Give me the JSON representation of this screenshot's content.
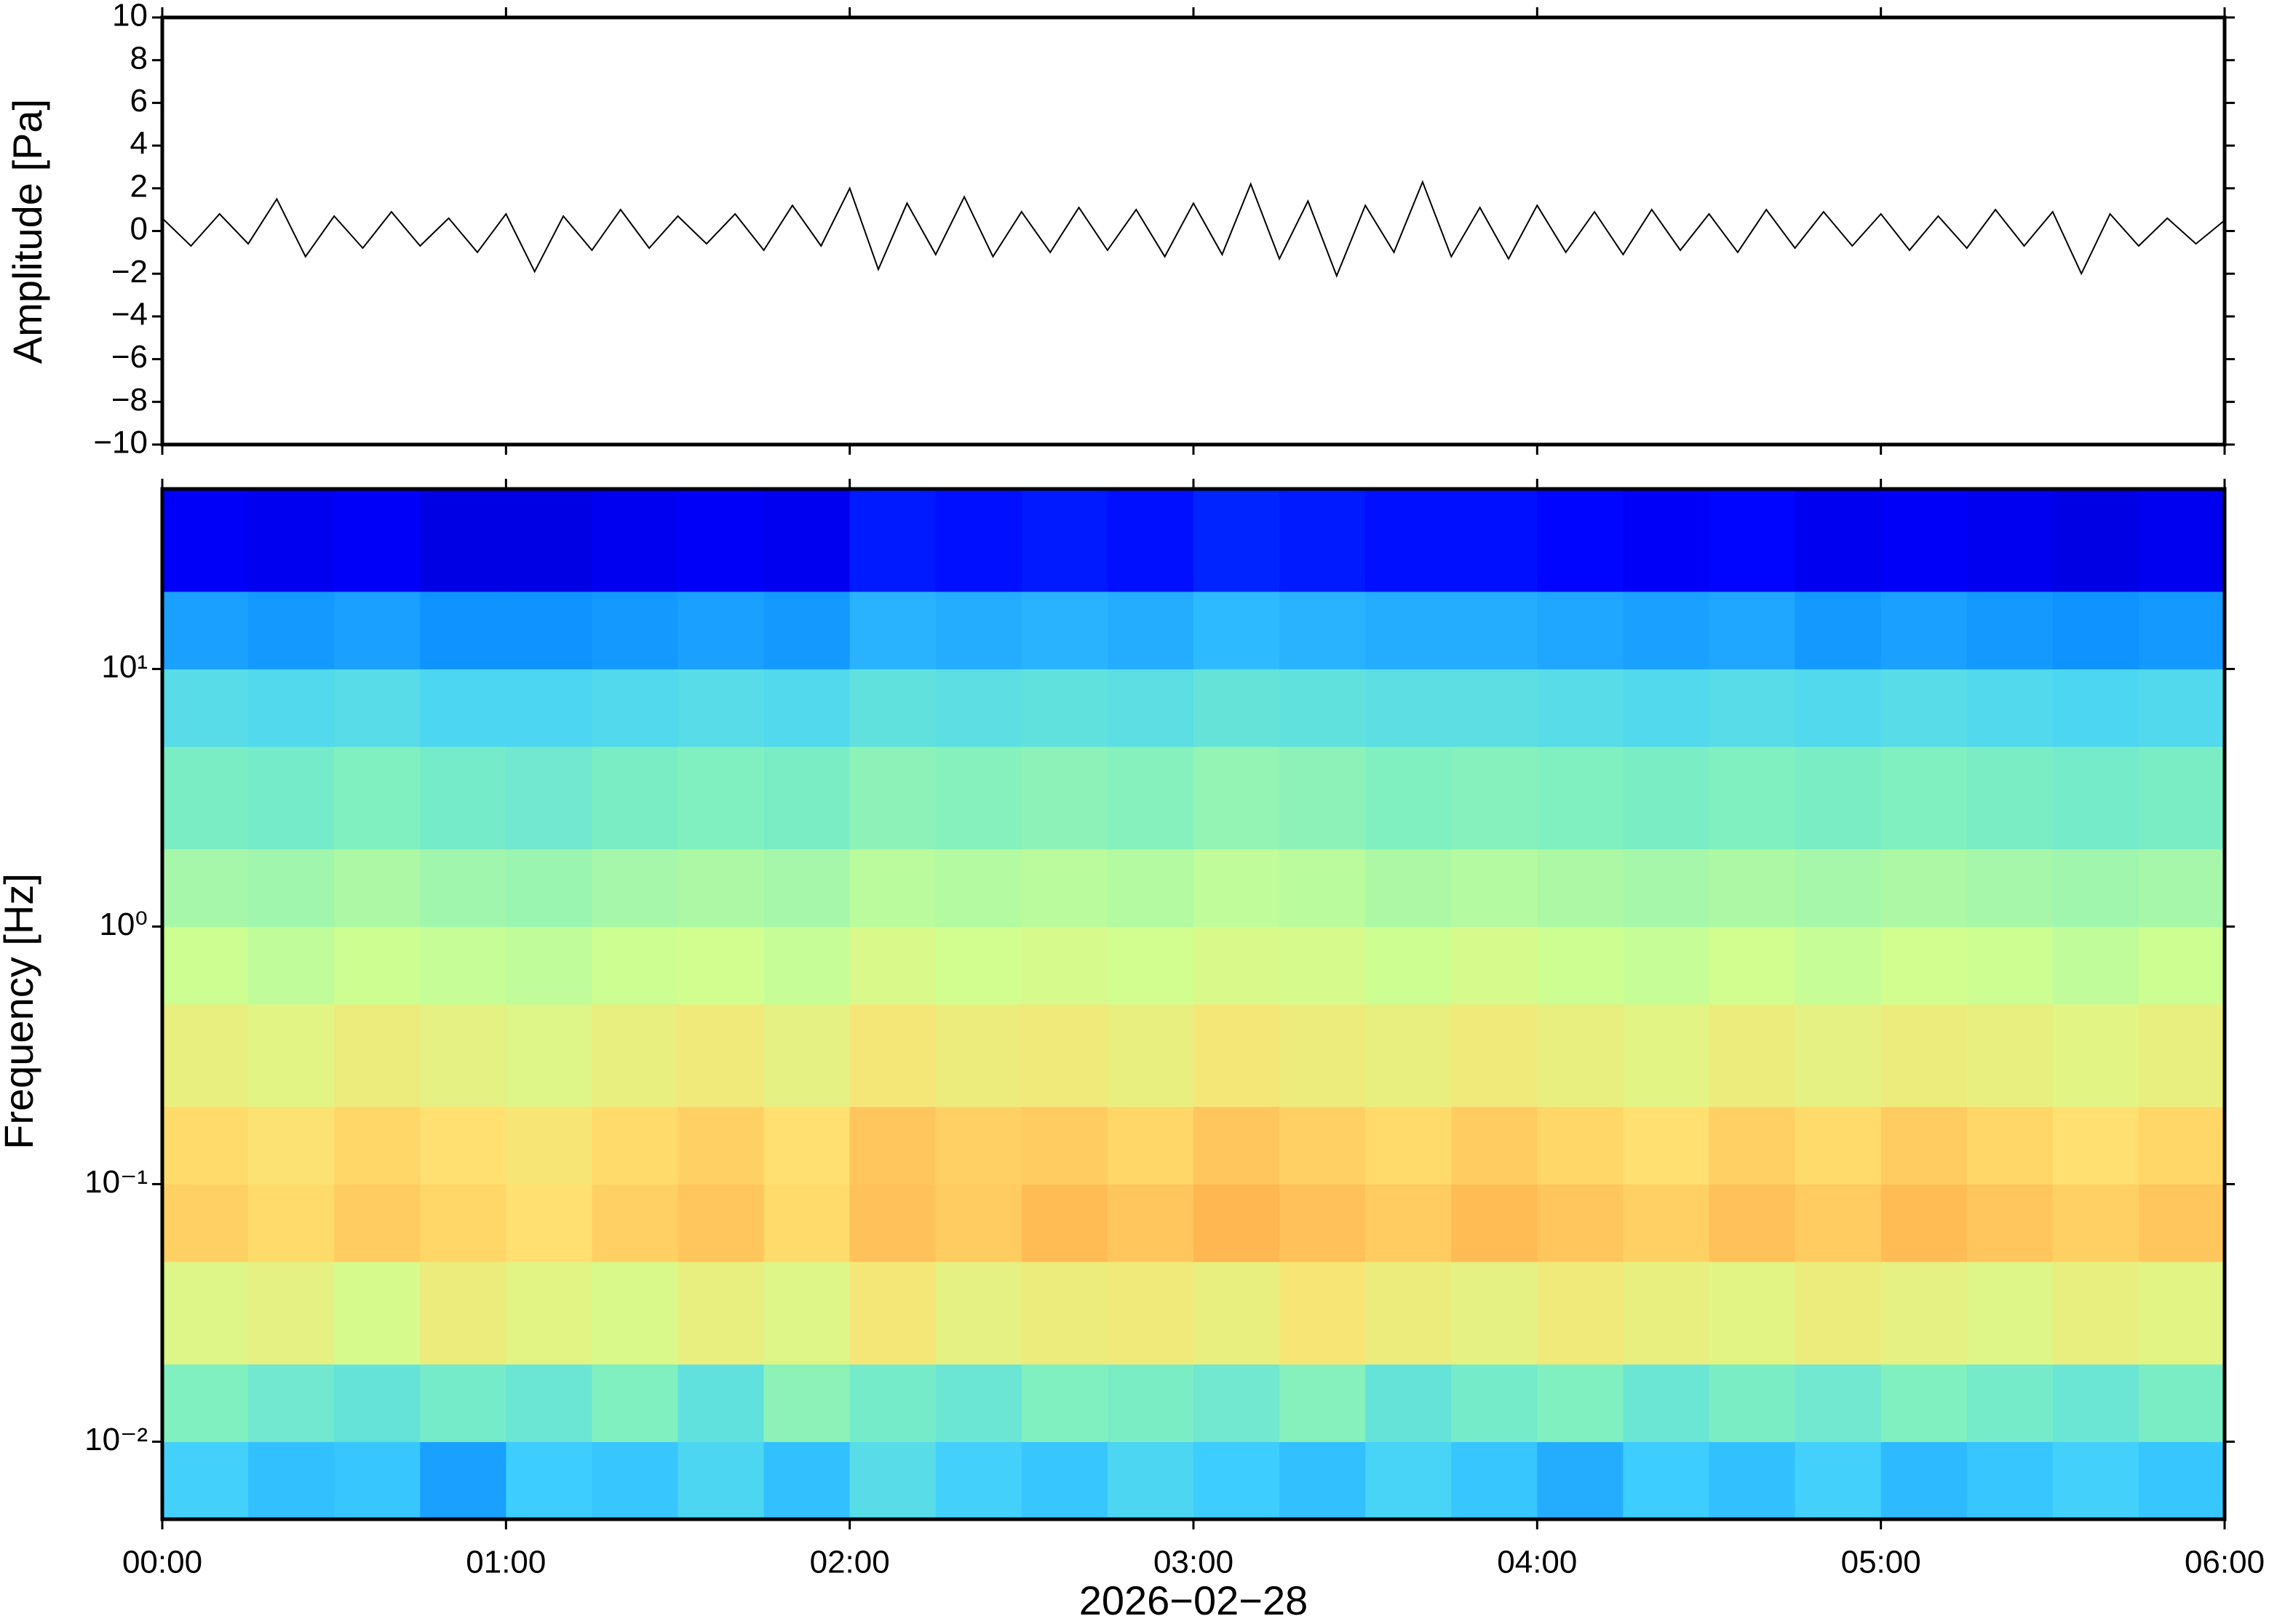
{
  "chart_data": [
    {
      "type": "line",
      "ylabel": "Amplitude [Pa]",
      "color": "#000000",
      "x": [
        0,
        5,
        10,
        15,
        20,
        25,
        30,
        35,
        40,
        45,
        50,
        55,
        60,
        65,
        70,
        75,
        80,
        85,
        90,
        95,
        100,
        105,
        110,
        115,
        120,
        125,
        130,
        135,
        140,
        145,
        150,
        155,
        160,
        165,
        170,
        175,
        180,
        185,
        190,
        195,
        200,
        205,
        210,
        215,
        220,
        225,
        230,
        235,
        240,
        245,
        250,
        255,
        260,
        265,
        270,
        275,
        280,
        285,
        290,
        295,
        300,
        305,
        310,
        315,
        320,
        325,
        330,
        335,
        340,
        345,
        350,
        355,
        360
      ],
      "values": [
        0.6,
        -0.7,
        0.8,
        -0.6,
        1.5,
        -1.2,
        0.7,
        -0.8,
        0.9,
        -0.7,
        0.6,
        -1.0,
        0.8,
        -1.9,
        0.7,
        -0.9,
        1.0,
        -0.8,
        0.7,
        -0.6,
        0.8,
        -0.9,
        1.2,
        -0.7,
        2.0,
        -1.8,
        1.3,
        -1.1,
        1.6,
        -1.2,
        0.9,
        -1.0,
        1.1,
        -0.9,
        1.0,
        -1.2,
        1.3,
        -1.1,
        2.2,
        -1.3,
        1.4,
        -2.1,
        1.2,
        -1.0,
        2.3,
        -1.2,
        1.1,
        -1.3,
        1.2,
        -1.0,
        0.9,
        -1.1,
        1.0,
        -0.9,
        0.8,
        -1.0,
        1.0,
        -0.8,
        0.9,
        -0.7,
        0.8,
        -0.9,
        0.7,
        -0.8,
        1.0,
        -0.7,
        0.9,
        -2.0,
        0.8,
        -0.7,
        0.6,
        -0.6,
        0.5
      ],
      "xlim": [
        0,
        360
      ],
      "xticks": [
        0,
        60,
        120,
        180,
        240,
        300,
        360
      ],
      "ylim": [
        -10,
        10
      ],
      "yticks": [
        10,
        8,
        6,
        4,
        2,
        0,
        {
          "value": -2,
          "label": "−2"
        },
        {
          "value": -4,
          "label": "−4"
        },
        {
          "value": -6,
          "label": "−6"
        },
        {
          "value": -8,
          "label": "−8"
        },
        {
          "value": -10,
          "label": "−10"
        }
      ]
    },
    {
      "type": "heatmap",
      "ylabel": "Frequency [Hz]",
      "xlabel": "2026−02−28",
      "log_y": true,
      "xlim": [
        0,
        360
      ],
      "xticks": [
        {
          "value": 0,
          "label": "00:00"
        },
        {
          "value": 60,
          "label": "01:00"
        },
        {
          "value": 120,
          "label": "02:00"
        },
        {
          "value": 180,
          "label": "03:00"
        },
        {
          "value": 240,
          "label": "04:00"
        },
        {
          "value": 300,
          "label": "05:00"
        },
        {
          "value": 360,
          "label": "06:00"
        }
      ],
      "ylim": [
        0.005,
        50
      ],
      "yticks": [
        {
          "value": 0.01,
          "label": "10⁻²"
        },
        {
          "value": 0.1,
          "label": "10⁻¹"
        },
        {
          "value": 1,
          "label": "10⁰"
        },
        {
          "value": 10,
          "label": "10¹"
        }
      ],
      "xbins": [
        0,
        15,
        30,
        45,
        60,
        75,
        90,
        105,
        120,
        135,
        150,
        165,
        180,
        195,
        210,
        225,
        240,
        255,
        270,
        285,
        300,
        315,
        330,
        345,
        360
      ],
      "ybins": [
        0.005,
        0.01,
        0.02,
        0.05,
        0.1,
        0.2,
        0.5,
        1,
        2,
        5,
        10,
        20,
        50
      ],
      "zlim": [
        0,
        1
      ],
      "colormap": [
        "#00007f",
        "#0000ff",
        "#0080ff",
        "#40d0ff",
        "#80f0c0",
        "#d0ff90",
        "#ffe070",
        "#ffa040",
        "#f04040"
      ],
      "values": [
        [
          0.38,
          0.35,
          0.36,
          0.3,
          0.37,
          0.36,
          0.4,
          0.35,
          0.42,
          0.38,
          0.36,
          0.4,
          0.37,
          0.35,
          0.39,
          0.36,
          0.32,
          0.37,
          0.35,
          0.38,
          0.34,
          0.36,
          0.38,
          0.36
        ],
        [
          0.5,
          0.47,
          0.45,
          0.48,
          0.46,
          0.5,
          0.44,
          0.52,
          0.48,
          0.46,
          0.5,
          0.49,
          0.47,
          0.51,
          0.45,
          0.48,
          0.5,
          0.46,
          0.49,
          0.47,
          0.5,
          0.48,
          0.46,
          0.49
        ],
        [
          0.66,
          0.68,
          0.64,
          0.7,
          0.67,
          0.65,
          0.69,
          0.66,
          0.72,
          0.68,
          0.7,
          0.71,
          0.69,
          0.73,
          0.7,
          0.68,
          0.71,
          0.69,
          0.67,
          0.7,
          0.68,
          0.66,
          0.69,
          0.67
        ],
        [
          0.78,
          0.76,
          0.79,
          0.77,
          0.75,
          0.78,
          0.8,
          0.76,
          0.81,
          0.79,
          0.82,
          0.8,
          0.83,
          0.81,
          0.79,
          0.82,
          0.8,
          0.78,
          0.81,
          0.79,
          0.82,
          0.8,
          0.78,
          0.8
        ],
        [
          0.76,
          0.74,
          0.77,
          0.75,
          0.73,
          0.76,
          0.78,
          0.75,
          0.8,
          0.78,
          0.79,
          0.77,
          0.8,
          0.78,
          0.76,
          0.79,
          0.77,
          0.75,
          0.78,
          0.76,
          0.79,
          0.77,
          0.75,
          0.77
        ],
        [
          0.69,
          0.67,
          0.7,
          0.68,
          0.66,
          0.69,
          0.71,
          0.68,
          0.72,
          0.7,
          0.71,
          0.69,
          0.72,
          0.7,
          0.69,
          0.71,
          0.69,
          0.67,
          0.7,
          0.68,
          0.7,
          0.69,
          0.67,
          0.69
        ],
        [
          0.62,
          0.6,
          0.62,
          0.61,
          0.6,
          0.62,
          0.63,
          0.61,
          0.65,
          0.63,
          0.64,
          0.63,
          0.65,
          0.64,
          0.62,
          0.64,
          0.62,
          0.61,
          0.63,
          0.61,
          0.63,
          0.62,
          0.6,
          0.62
        ],
        [
          0.56,
          0.55,
          0.57,
          0.55,
          0.54,
          0.56,
          0.57,
          0.56,
          0.59,
          0.58,
          0.59,
          0.58,
          0.6,
          0.59,
          0.57,
          0.58,
          0.57,
          0.56,
          0.57,
          0.56,
          0.57,
          0.56,
          0.55,
          0.56
        ],
        [
          0.49,
          0.48,
          0.5,
          0.48,
          0.47,
          0.49,
          0.5,
          0.49,
          0.52,
          0.51,
          0.52,
          0.51,
          0.53,
          0.52,
          0.5,
          0.51,
          0.5,
          0.49,
          0.5,
          0.49,
          0.5,
          0.49,
          0.48,
          0.49
        ],
        [
          0.42,
          0.41,
          0.42,
          0.4,
          0.4,
          0.41,
          0.42,
          0.41,
          0.44,
          0.43,
          0.44,
          0.43,
          0.45,
          0.44,
          0.43,
          0.43,
          0.42,
          0.41,
          0.42,
          0.41,
          0.42,
          0.41,
          0.4,
          0.41
        ],
        [
          0.3,
          0.29,
          0.3,
          0.28,
          0.28,
          0.29,
          0.3,
          0.29,
          0.33,
          0.32,
          0.33,
          0.32,
          0.34,
          0.33,
          0.32,
          0.32,
          0.31,
          0.3,
          0.31,
          0.29,
          0.3,
          0.29,
          0.28,
          0.29
        ],
        [
          0.12,
          0.11,
          0.12,
          0.1,
          0.1,
          0.11,
          0.12,
          0.11,
          0.15,
          0.14,
          0.15,
          0.14,
          0.16,
          0.15,
          0.14,
          0.14,
          0.13,
          0.12,
          0.13,
          0.11,
          0.12,
          0.11,
          0.1,
          0.11
        ]
      ]
    }
  ]
}
